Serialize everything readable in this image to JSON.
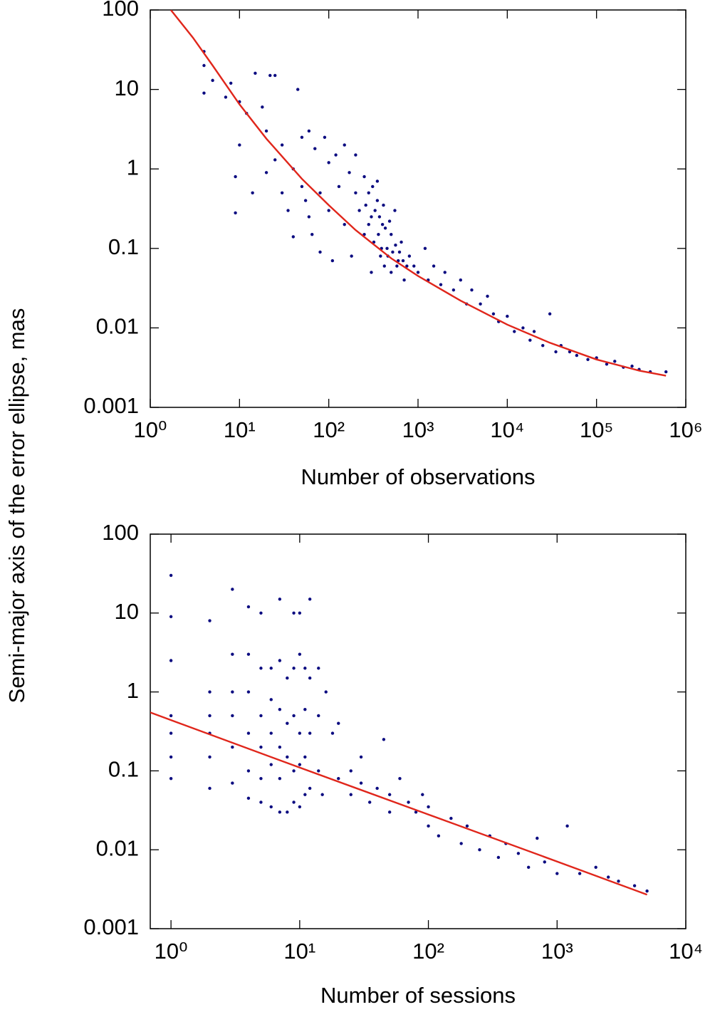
{
  "ylabel": "Semi-major axis of the error ellipse, mas",
  "chart_data": [
    {
      "type": "scatter",
      "xlabel": "Number of observations",
      "log_x": true,
      "log_y": true,
      "xlim": [
        1,
        1000000
      ],
      "ylim": [
        0.001,
        100
      ],
      "xticks": [
        {
          "value": 1,
          "label": "10⁰"
        },
        {
          "value": 10,
          "label": "10¹"
        },
        {
          "value": 100,
          "label": "10²"
        },
        {
          "value": 1000,
          "label": "10³"
        },
        {
          "value": 10000,
          "label": "10⁴"
        },
        {
          "value": 100000,
          "label": "10⁵"
        },
        {
          "value": 1000000,
          "label": "10⁶"
        }
      ],
      "yticks": [
        100,
        10,
        1,
        0.1,
        0.01,
        0.001
      ],
      "series": [
        {
          "type": "scatter",
          "color": "#0a0a80",
          "x": [
            4,
            4,
            4,
            5,
            7,
            8,
            10,
            10,
            9,
            9,
            12,
            14,
            15,
            18,
            20,
            20,
            22,
            25,
            25,
            30,
            30,
            35,
            40,
            40,
            45,
            50,
            50,
            55,
            60,
            60,
            65,
            70,
            80,
            80,
            90,
            100,
            100,
            110,
            120,
            130,
            150,
            150,
            170,
            180,
            200,
            200,
            220,
            250,
            250,
            280,
            300,
            300,
            320,
            350,
            350,
            380,
            400,
            420,
            450,
            500,
            500,
            550,
            600,
            650,
            700,
            800,
            900,
            1000,
            1200,
            1300,
            1500,
            1800,
            2000,
            2500,
            3000,
            3500,
            4000,
            5000,
            6000,
            7000,
            8000,
            10000,
            12000,
            15000,
            18000,
            20000,
            25000,
            30000,
            35000,
            40000,
            50000,
            60000,
            80000,
            100000,
            130000,
            160000,
            200000,
            250000,
            300000,
            400000,
            600000,
            260,
            280,
            310,
            330,
            360,
            370,
            390,
            410,
            430,
            460,
            480,
            520,
            560,
            580,
            620,
            680,
            750
          ],
          "y": [
            30,
            20,
            9,
            13,
            8,
            12,
            7,
            2,
            0.8,
            0.28,
            5,
            0.5,
            16,
            6,
            3,
            0.9,
            15,
            15,
            1.3,
            0.5,
            2,
            0.3,
            1,
            0.14,
            10,
            0.6,
            2.5,
            0.4,
            3,
            0.25,
            0.15,
            1.8,
            0.5,
            0.09,
            2.5,
            1.2,
            0.3,
            0.07,
            1.5,
            0.6,
            0.2,
            2,
            0.9,
            0.08,
            0.5,
            1.5,
            0.3,
            0.15,
            0.8,
            0.5,
            0.25,
            0.05,
            0.12,
            0.4,
            0.7,
            0.08,
            0.2,
            0.06,
            0.1,
            0.15,
            0.05,
            0.3,
            0.07,
            0.12,
            0.04,
            0.08,
            0.06,
            0.05,
            0.1,
            0.04,
            0.06,
            0.035,
            0.05,
            0.03,
            0.04,
            0.02,
            0.03,
            0.02,
            0.025,
            0.015,
            0.012,
            0.014,
            0.009,
            0.01,
            0.007,
            0.009,
            0.006,
            0.015,
            0.005,
            0.006,
            0.005,
            0.0045,
            0.004,
            0.0042,
            0.0035,
            0.0038,
            0.0032,
            0.0033,
            0.003,
            0.0028,
            0.0028,
            0.35,
            0.2,
            0.6,
            0.3,
            0.15,
            0.25,
            0.1,
            0.35,
            0.18,
            0.08,
            0.22,
            0.09,
            0.11,
            0.06,
            0.09,
            0.07,
            0.06
          ]
        },
        {
          "type": "line",
          "color": "#e0261b",
          "x": [
            1.7,
            3,
            5,
            10,
            20,
            50,
            100,
            200,
            500,
            1000,
            3000,
            10000,
            30000,
            100000,
            300000,
            600000
          ],
          "y": [
            100,
            45,
            20,
            6.5,
            2.4,
            0.75,
            0.35,
            0.17,
            0.075,
            0.045,
            0.022,
            0.011,
            0.0065,
            0.004,
            0.0029,
            0.0025
          ]
        }
      ]
    },
    {
      "type": "scatter",
      "xlabel": "Number of sessions",
      "log_x": true,
      "log_y": true,
      "xlim": [
        0.69,
        10000
      ],
      "ylim": [
        0.001,
        100
      ],
      "xticks": [
        {
          "value": 1,
          "label": "10⁰"
        },
        {
          "value": 10,
          "label": "10¹"
        },
        {
          "value": 100,
          "label": "10²"
        },
        {
          "value": 1000,
          "label": "10³"
        },
        {
          "value": 10000,
          "label": "10⁴"
        }
      ],
      "yticks": [
        100,
        10,
        1,
        0.1,
        0.01,
        0.001
      ],
      "series": [
        {
          "type": "scatter",
          "color": "#0a0a80",
          "x": [
            1,
            1,
            1,
            1,
            1,
            1,
            1,
            2,
            2,
            2,
            2,
            2,
            2,
            3,
            3,
            3,
            3,
            3,
            3,
            4,
            4,
            4,
            4,
            4,
            4,
            5,
            5,
            5,
            5,
            5,
            5,
            6,
            6,
            6,
            6,
            6,
            7,
            7,
            7,
            7,
            7,
            7,
            8,
            8,
            8,
            8,
            9,
            9,
            9,
            9,
            9,
            10,
            10,
            10,
            10,
            10,
            11,
            11,
            11,
            11,
            12,
            12,
            12,
            12,
            14,
            14,
            14,
            15,
            16,
            18,
            20,
            20,
            25,
            25,
            30,
            30,
            35,
            40,
            45,
            50,
            50,
            60,
            70,
            80,
            90,
            100,
            100,
            120,
            150,
            180,
            200,
            250,
            300,
            350,
            400,
            500,
            600,
            700,
            800,
            1000,
            1200,
            1500,
            2000,
            2500,
            3000,
            4000,
            5000
          ],
          "y": [
            30,
            9,
            2.5,
            0.5,
            0.3,
            0.15,
            0.08,
            8,
            1,
            0.5,
            0.3,
            0.15,
            0.06,
            20,
            3,
            1,
            0.5,
            0.2,
            0.07,
            12,
            3,
            1,
            0.3,
            0.1,
            0.045,
            10,
            2,
            0.5,
            0.2,
            0.08,
            0.04,
            2,
            0.8,
            0.3,
            0.12,
            0.035,
            15,
            2.5,
            0.6,
            0.2,
            0.08,
            0.03,
            1.5,
            0.4,
            0.15,
            0.03,
            10,
            2,
            0.5,
            0.1,
            0.04,
            10,
            3,
            0.3,
            0.12,
            0.035,
            2,
            0.6,
            0.15,
            0.05,
            15,
            1.5,
            0.3,
            0.06,
            2,
            0.5,
            0.1,
            0.05,
            1,
            0.3,
            0.08,
            0.4,
            0.1,
            0.05,
            0.07,
            0.15,
            0.04,
            0.06,
            0.25,
            0.05,
            0.03,
            0.08,
            0.04,
            0.03,
            0.05,
            0.02,
            0.035,
            0.015,
            0.025,
            0.012,
            0.02,
            0.01,
            0.015,
            0.008,
            0.012,
            0.009,
            0.006,
            0.014,
            0.007,
            0.005,
            0.02,
            0.005,
            0.006,
            0.0045,
            0.004,
            0.0035,
            0.003
          ]
        },
        {
          "type": "line",
          "color": "#e0261b",
          "x": [
            0.69,
            10,
            100,
            1000,
            5000
          ],
          "y": [
            0.55,
            0.11,
            0.028,
            0.0071,
            0.0027
          ]
        }
      ]
    }
  ]
}
